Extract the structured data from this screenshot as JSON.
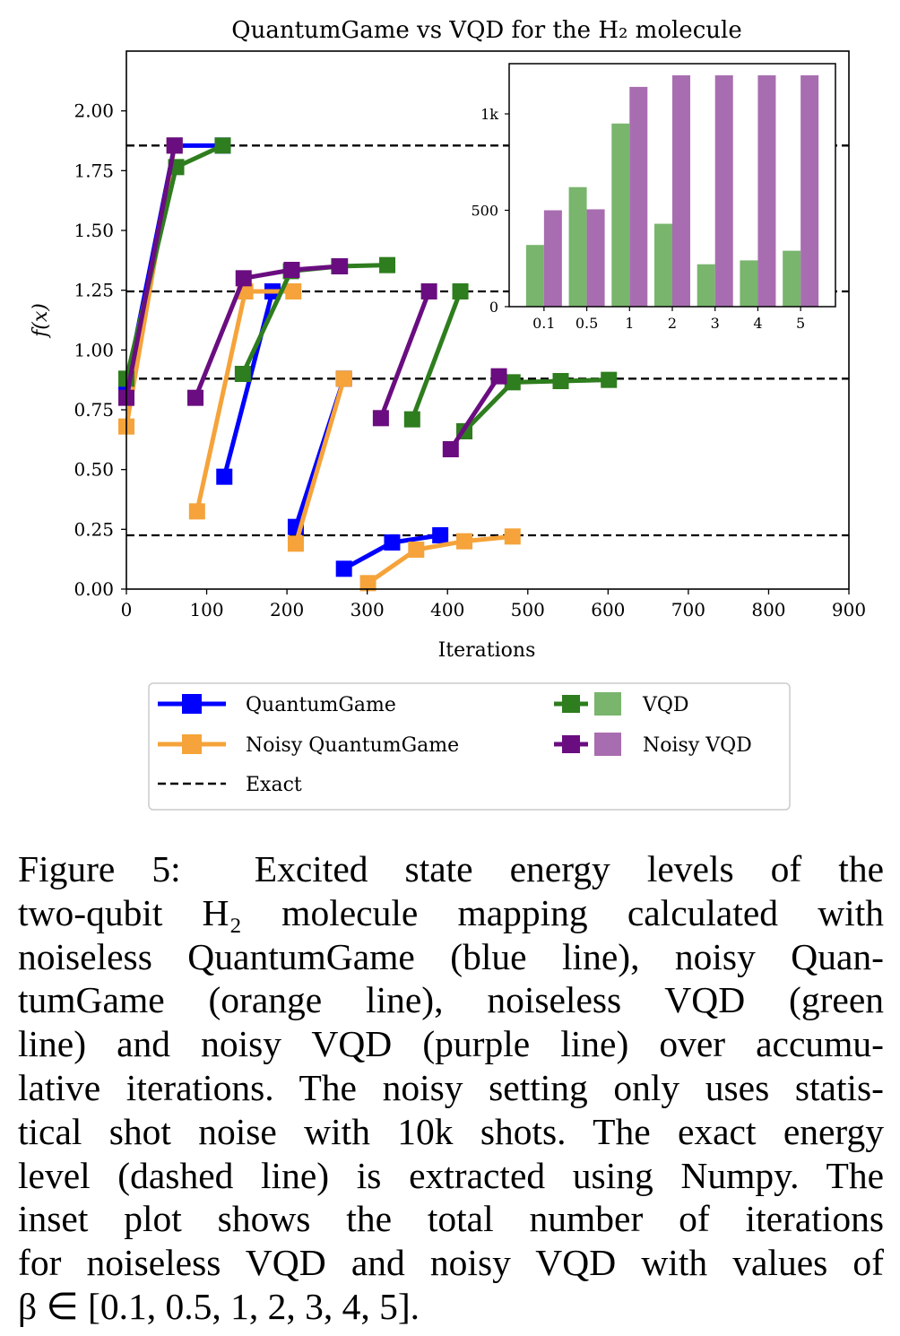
{
  "chart_data": [
    {
      "type": "line",
      "title": "QuantumGame vs VQD for the H₂ molecule",
      "xlabel": "Iterations",
      "ylabel": "f(x)",
      "xlim": [
        0,
        900
      ],
      "ylim": [
        0,
        2.25
      ],
      "xticks": [
        0,
        100,
        200,
        300,
        400,
        500,
        600,
        700,
        800,
        900
      ],
      "yticks": [
        0.0,
        0.25,
        0.5,
        0.75,
        1.0,
        1.25,
        1.5,
        1.75,
        2.0
      ],
      "xtick_labels": [
        "0",
        "100",
        "200",
        "300",
        "400",
        "500",
        "600",
        "700",
        "800",
        "900"
      ],
      "ytick_labels": [
        "0.00",
        "0.25",
        "0.50",
        "0.75",
        "1.00",
        "1.25",
        "1.50",
        "1.75",
        "2.00"
      ],
      "exact_levels": [
        1.855,
        1.245,
        0.88,
        0.225
      ],
      "series": [
        {
          "name": "QuantumGame",
          "color": "#0000ff",
          "segments": [
            [
              [
                0,
                0.85
              ],
              [
                60,
                1.855
              ],
              [
                120,
                1.855
              ]
            ],
            [
              [
                122,
                0.47
              ],
              [
                182,
                1.245
              ]
            ],
            [
              [
                211,
                0.26
              ],
              [
                271,
                0.88
              ]
            ],
            [
              [
                271,
                0.085
              ],
              [
                331,
                0.195
              ],
              [
                391,
                0.225
              ]
            ]
          ]
        },
        {
          "name": "Noisy QuantumGame",
          "color": "#f5a33a",
          "segments": [
            [
              [
                0,
                0.68
              ],
              [
                60,
                1.855
              ]
            ],
            [
              [
                88,
                0.325
              ],
              [
                148,
                1.245
              ],
              [
                208,
                1.245
              ]
            ],
            [
              [
                211,
                0.19
              ],
              [
                271,
                0.88
              ]
            ],
            [
              [
                301,
                0.025
              ],
              [
                361,
                0.165
              ],
              [
                421,
                0.2
              ],
              [
                481,
                0.22
              ]
            ]
          ]
        },
        {
          "name": "VQD",
          "color": "#2e7d1e",
          "segments": [
            [
              [
                0,
                0.88
              ],
              [
                62,
                1.765
              ],
              [
                120,
                1.855
              ]
            ],
            [
              [
                145,
                0.9
              ],
              [
                205,
                1.33
              ],
              [
                265,
                1.35
              ],
              [
                325,
                1.355
              ]
            ],
            [
              [
                356,
                0.71
              ],
              [
                416,
                1.245
              ]
            ],
            [
              [
                421,
                0.66
              ],
              [
                481,
                0.865
              ],
              [
                541,
                0.87
              ],
              [
                601,
                0.875
              ]
            ]
          ]
        },
        {
          "name": "Noisy VQD",
          "color": "#6a0d80",
          "segments": [
            [
              [
                0,
                0.8
              ],
              [
                60,
                1.855
              ]
            ],
            [
              [
                86,
                0.8
              ],
              [
                146,
                1.3
              ],
              [
                206,
                1.335
              ],
              [
                266,
                1.35
              ]
            ],
            [
              [
                317,
                0.715
              ],
              [
                377,
                1.245
              ]
            ],
            [
              [
                404,
                0.585
              ],
              [
                464,
                0.89
              ]
            ]
          ]
        }
      ],
      "legend": [
        "QuantumGame",
        "Noisy QuantumGame",
        "Exact",
        "VQD",
        "Noisy VQD"
      ],
      "legend_placement": "below"
    },
    {
      "type": "bar",
      "categories": [
        "0.1",
        "0.5",
        "1",
        "2",
        "3",
        "4",
        "5"
      ],
      "ylim": [
        0,
        1200
      ],
      "yticks": [
        0,
        500,
        1000
      ],
      "ytick_labels": [
        "0",
        "500",
        "1k"
      ],
      "series": [
        {
          "name": "VQD",
          "color": "#79b56d",
          "values": [
            320,
            620,
            950,
            430,
            220,
            240,
            290
          ]
        },
        {
          "name": "Noisy VQD",
          "color": "#a86db0",
          "values": [
            500,
            505,
            1140,
            1200,
            1200,
            1200,
            1200
          ]
        }
      ],
      "placement": "inset top-right"
    }
  ],
  "legend": {
    "quantumgame": "QuantumGame",
    "noisy_quantumgame": "Noisy QuantumGame",
    "exact": "Exact",
    "vqd": "VQD",
    "noisy_vqd": "Noisy VQD"
  },
  "caption": {
    "lines": [
      "Figure 5:  Excited state energy levels of the",
      "two-qubit H₂ molecule mapping calculated with",
      "noiseless QuantumGame (blue line), noisy Quan-",
      "tumGame (orange line), noiseless VQD (green",
      "line) and noisy VQD (purple line) over accumu-",
      "lative iterations. The noisy setting only uses statis-",
      "tical shot noise with 10k shots. The exact energy",
      "level (dashed line) is extracted using Numpy. The",
      "inset plot shows the total number of iterations",
      "for noiseless VQD and noisy VQD with values of",
      "β ∈ [0.1, 0.5, 1, 2, 3, 4, 5]."
    ]
  }
}
